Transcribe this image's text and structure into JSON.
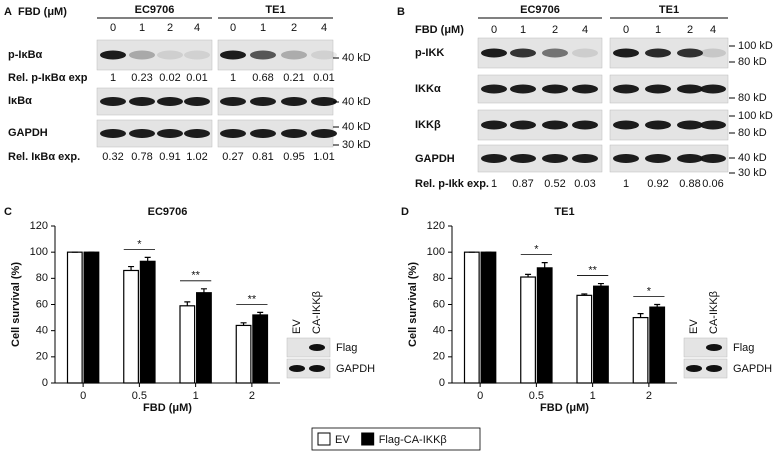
{
  "panels": [
    {
      "label": "A",
      "dose_label": "FBD (μM)",
      "cell_lines": [
        {
          "name": "EC9706",
          "doses": [
            "0",
            "1",
            "2",
            "4"
          ]
        },
        {
          "name": "TE1",
          "doses": [
            "0",
            "1",
            "2",
            "4"
          ]
        }
      ],
      "rows": [
        {
          "label": "p-IκBα",
          "markers": [
            "40 kD"
          ]
        },
        {
          "label": "Rel. p-IκBα exp",
          "values": [
            [
              1,
              0.23,
              0.02,
              0.01
            ],
            [
              1,
              0.68,
              0.21,
              0.01
            ]
          ]
        },
        {
          "label": "IκBα",
          "markers": [
            "40 kD"
          ]
        },
        {
          "label": "GAPDH",
          "markers": [
            "40 kD",
            "30 kD"
          ]
        },
        {
          "label": "Rel. IκBα exp.",
          "values": [
            [
              0.32,
              0.78,
              0.91,
              1.02
            ],
            [
              0.27,
              0.81,
              0.95,
              1.01
            ]
          ]
        }
      ]
    },
    {
      "label": "B",
      "dose_label": "FBD (μM)",
      "cell_lines": [
        {
          "name": "EC9706",
          "doses": [
            "0",
            "1",
            "2",
            "4"
          ]
        },
        {
          "name": "TE1",
          "doses": [
            "0",
            "1",
            "2",
            "4"
          ]
        }
      ],
      "rows": [
        {
          "label": "p-IKK",
          "markers": [
            "100 kD",
            "80 kD"
          ]
        },
        {
          "label": "IKKα",
          "markers": [
            "80 kD"
          ]
        },
        {
          "label": "IKKβ",
          "markers": [
            "100 kD",
            "80 kD"
          ]
        },
        {
          "label": "GAPDH",
          "markers": [
            "40 kD",
            "30 kD"
          ]
        },
        {
          "label": "Rel. p-Ikk exp.",
          "values": [
            [
              1,
              0.87,
              0.52,
              0.03
            ],
            [
              1,
              0.92,
              0.88,
              0.06
            ]
          ]
        }
      ]
    }
  ],
  "chart_data": [
    {
      "type": "bar",
      "panel_label": "C",
      "title": "EC9706",
      "x_label": "FBD (μM)",
      "y_label": "Cell survival (%)",
      "categories": [
        "0",
        "0.5",
        "1",
        "2"
      ],
      "series": [
        {
          "name": "EV",
          "color": "#ffffff",
          "values": [
            100,
            86,
            59,
            44
          ],
          "errors": [
            0,
            3,
            3,
            2
          ]
        },
        {
          "name": "Flag-CA-IKKβ",
          "color": "#000000",
          "values": [
            100,
            93,
            69,
            52
          ],
          "errors": [
            0,
            3,
            3,
            2
          ]
        }
      ],
      "significance": [
        null,
        "*",
        "**",
        "**"
      ],
      "ylim": [
        0,
        120
      ],
      "yticks": [
        0,
        20,
        40,
        60,
        80,
        100,
        120
      ],
      "inset": {
        "lanes": [
          "EV",
          "CA-IKKβ"
        ],
        "rows": [
          "Flag",
          "GAPDH"
        ]
      }
    },
    {
      "type": "bar",
      "panel_label": "D",
      "title": "TE1",
      "x_label": "FBD (μM)",
      "y_label": "Cell survival (%)",
      "categories": [
        "0",
        "0.5",
        "1",
        "2"
      ],
      "series": [
        {
          "color": "#ffffff",
          "values": [
            100,
            81,
            67,
            50
          ],
          "errors": [
            0,
            2,
            1,
            3
          ]
        },
        {
          "color": "#000000",
          "values": [
            100,
            88,
            74,
            58
          ],
          "errors": [
            0,
            4,
            2,
            2
          ]
        }
      ],
      "significance": [
        null,
        "*",
        "**",
        "*"
      ],
      "ylim": [
        0,
        120
      ],
      "yticks": [
        0,
        20,
        40,
        60,
        80,
        100,
        120
      ],
      "inset": {
        "lanes": [
          "EV",
          "CA-IKKβ"
        ],
        "rows": [
          "Flag",
          "GAPDH"
        ]
      }
    }
  ]
}
